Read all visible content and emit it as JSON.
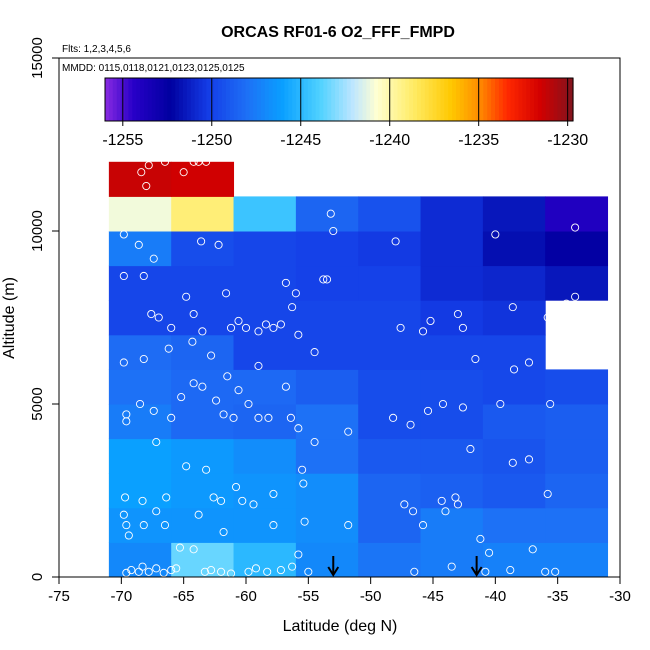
{
  "chart_data": {
    "type": "heatmap",
    "title": "ORCAS RF01-6 O2_FFF_FMPD",
    "annotations": {
      "flights": "Flts: 1,2,3,4,5,6",
      "dates": "MMDD: 0115,0118,0121,0123,0125,0125"
    },
    "xlabel": "Latitude (deg N)",
    "ylabel": "Altitude (m)",
    "xlim": [
      -75,
      -30
    ],
    "ylim": [
      0,
      15000
    ],
    "x_ticks": [
      -75,
      -70,
      -65,
      -60,
      -55,
      -50,
      -45,
      -40,
      -35,
      -30
    ],
    "x_tick_labels": [
      "-75",
      "-70",
      "-65",
      "-60",
      "-55",
      "-50",
      "-45",
      "-40",
      "-35",
      "-30"
    ],
    "y_ticks": [
      0,
      5000,
      10000,
      15000
    ],
    "y_tick_labels": [
      "0",
      "5000",
      "10000",
      "15000"
    ],
    "colorbar": {
      "min": -1256,
      "max": -1229.7,
      "ticks": [
        -1255,
        -1250,
        -1245,
        -1240,
        -1235,
        -1230
      ],
      "tick_labels": [
        "-1255",
        "-1250",
        "-1245",
        "-1240",
        "-1235",
        "-1230"
      ]
    },
    "lat_edges": [
      -71,
      -66,
      -61,
      -56,
      -51,
      -46,
      -41,
      -36,
      -31
    ],
    "alt_edges": [
      0,
      1000,
      2000,
      3000,
      4000,
      5000,
      6000,
      7000,
      8000,
      9000,
      10000,
      11000,
      12000
    ],
    "cells": [
      [
        -1247.0,
        -1243.5,
        -1245.0,
        -1247.0,
        -1247.8,
        -1247.5,
        -1247.3,
        -1247.3
      ],
      [
        -1246.5,
        -1246.5,
        -1246.5,
        -1246.8,
        -1248.5,
        -1247.5,
        -1248.0,
        -1248.0
      ],
      [
        -1246.0,
        -1246.3,
        -1246.5,
        -1246.8,
        -1248.5,
        -1248.7,
        -1249.0,
        -1248.5
      ],
      [
        -1246.0,
        -1246.3,
        -1246.8,
        -1248.0,
        -1249.0,
        -1249.0,
        -1249.2,
        -1248.8
      ],
      [
        -1247.5,
        -1248.3,
        -1248.5,
        -1248.0,
        -1249.5,
        -1249.5,
        -1249.0,
        -1248.8
      ],
      [
        -1248.0,
        -1248.3,
        -1248.3,
        -1248.8,
        -1249.5,
        -1249.5,
        -1249.7,
        -1249.5
      ],
      [
        -1248.2,
        -1248.5,
        -1249.8,
        -1249.8,
        -1249.8,
        -1249.8,
        -1249.8,
        null
      ],
      [
        -1249.8,
        -1249.8,
        -1249.8,
        -1249.8,
        -1249.8,
        -1250.3,
        -1250.5,
        null
      ],
      [
        -1249.8,
        -1249.8,
        -1249.8,
        -1250.0,
        -1250.0,
        -1250.8,
        -1251.0,
        -1251.5
      ],
      [
        -1247.5,
        -1249.5,
        -1249.8,
        -1250.0,
        -1250.3,
        -1250.8,
        -1251.8,
        -1252.5
      ],
      [
        -1241.0,
        -1239.0,
        -1244.5,
        -1248.5,
        -1249.3,
        -1250.8,
        -1251.5,
        -1254.0
      ],
      [
        -1231.3,
        -1231.5,
        null,
        null,
        null,
        null,
        null,
        null
      ]
    ],
    "arrows_lat": [
      -53,
      -41.5
    ],
    "points": [
      [
        -69.6,
        120
      ],
      [
        -69.2,
        200
      ],
      [
        -68.6,
        150
      ],
      [
        -68.3,
        300
      ],
      [
        -67.8,
        150
      ],
      [
        -67.2,
        250
      ],
      [
        -66.6,
        120
      ],
      [
        -66.0,
        200
      ],
      [
        -65.6,
        250
      ],
      [
        -65.3,
        850
      ],
      [
        -64.2,
        800
      ],
      [
        -63.3,
        150
      ],
      [
        -62.8,
        200
      ],
      [
        -62.0,
        150
      ],
      [
        -61.2,
        100
      ],
      [
        -59.8,
        150
      ],
      [
        -59.2,
        250
      ],
      [
        -58.3,
        150
      ],
      [
        -57.2,
        200
      ],
      [
        -56.3,
        300
      ],
      [
        -55.8,
        650
      ],
      [
        -55.0,
        150
      ],
      [
        -46.5,
        150
      ],
      [
        -43.5,
        300
      ],
      [
        -40.8,
        150
      ],
      [
        -38.8,
        200
      ],
      [
        -36.0,
        150
      ],
      [
        -35.2,
        150
      ],
      [
        -69.8,
        1800
      ],
      [
        -69.6,
        1500
      ],
      [
        -69.4,
        1200
      ],
      [
        -68.2,
        1500
      ],
      [
        -67.2,
        1900
      ],
      [
        -66.5,
        1500
      ],
      [
        -63.8,
        1800
      ],
      [
        -61.8,
        1300
      ],
      [
        -57.8,
        1500
      ],
      [
        -55.3,
        1600
      ],
      [
        -51.8,
        1500
      ],
      [
        -47.3,
        2100
      ],
      [
        -46.6,
        1900
      ],
      [
        -45.8,
        1500
      ],
      [
        -44.0,
        1900
      ],
      [
        -43.0,
        2100
      ],
      [
        -41.2,
        1100
      ],
      [
        -40.5,
        700
      ],
      [
        -37.0,
        800
      ],
      [
        -69.7,
        2300
      ],
      [
        -68.3,
        2200
      ],
      [
        -66.4,
        2300
      ],
      [
        -64.8,
        3200
      ],
      [
        -63.2,
        3100
      ],
      [
        -62.6,
        2300
      ],
      [
        -62.0,
        2200
      ],
      [
        -60.8,
        2600
      ],
      [
        -60.3,
        2200
      ],
      [
        -59.4,
        2100
      ],
      [
        -57.8,
        2400
      ],
      [
        -55.5,
        3100
      ],
      [
        -55.4,
        2700
      ],
      [
        -44.3,
        2200
      ],
      [
        -43.2,
        2300
      ],
      [
        -42.0,
        3700
      ],
      [
        -38.6,
        3300
      ],
      [
        -37.3,
        3400
      ],
      [
        -35.8,
        2400
      ],
      [
        -54.5,
        3900
      ],
      [
        -69.6,
        4500
      ],
      [
        -69.6,
        4700
      ],
      [
        -68.5,
        5000
      ],
      [
        -67.4,
        4800
      ],
      [
        -67.2,
        3900
      ],
      [
        -66.0,
        4600
      ],
      [
        -65.2,
        5200
      ],
      [
        -64.2,
        5600
      ],
      [
        -63.5,
        5500
      ],
      [
        -62.4,
        5100
      ],
      [
        -61.8,
        4700
      ],
      [
        -61.0,
        4600
      ],
      [
        -59.8,
        5000
      ],
      [
        -59.0,
        4600
      ],
      [
        -58.2,
        4600
      ],
      [
        -56.4,
        4600
      ],
      [
        -55.8,
        4300
      ],
      [
        -51.8,
        4200
      ],
      [
        -48.2,
        4600
      ],
      [
        -46.8,
        4400
      ],
      [
        -45.4,
        4800
      ],
      [
        -44.2,
        5000
      ],
      [
        -42.6,
        4900
      ],
      [
        -39.6,
        5000
      ],
      [
        -35.6,
        5000
      ],
      [
        -69.8,
        6200
      ],
      [
        -68.2,
        6300
      ],
      [
        -66.2,
        6600
      ],
      [
        -64.3,
        6800
      ],
      [
        -62.8,
        6400
      ],
      [
        -61.5,
        5800
      ],
      [
        -60.6,
        5400
      ],
      [
        -59.0,
        6100
      ],
      [
        -56.8,
        5500
      ],
      [
        -54.5,
        6500
      ],
      [
        -41.6,
        6300
      ],
      [
        -38.5,
        6000
      ],
      [
        -37.3,
        6200
      ],
      [
        -69.8,
        8700
      ],
      [
        -68.2,
        8700
      ],
      [
        -67.6,
        7600
      ],
      [
        -67.0,
        7500
      ],
      [
        -66.0,
        7200
      ],
      [
        -64.8,
        8100
      ],
      [
        -64.2,
        7600
      ],
      [
        -63.5,
        7100
      ],
      [
        -61.6,
        8200
      ],
      [
        -61.2,
        7200
      ],
      [
        -60.6,
        7400
      ],
      [
        -60.0,
        7200
      ],
      [
        -59.0,
        7100
      ],
      [
        -58.4,
        7300
      ],
      [
        -57.8,
        7200
      ],
      [
        -57.2,
        7300
      ],
      [
        -56.8,
        8500
      ],
      [
        -56.3,
        7800
      ],
      [
        -56.0,
        8200
      ],
      [
        -55.8,
        7000
      ],
      [
        -53.8,
        8600
      ],
      [
        -53.5,
        8600
      ],
      [
        -47.6,
        7200
      ],
      [
        -45.8,
        7100
      ],
      [
        -45.2,
        7400
      ],
      [
        -43.0,
        7600
      ],
      [
        -42.6,
        7200
      ],
      [
        -38.6,
        7800
      ],
      [
        -35.8,
        7500
      ],
      [
        -35.0,
        7800
      ],
      [
        -34.3,
        7900
      ],
      [
        -33.6,
        8100
      ],
      [
        -69.8,
        9900
      ],
      [
        -68.6,
        9600
      ],
      [
        -67.4,
        9200
      ],
      [
        -63.6,
        9700
      ],
      [
        -62.2,
        9600
      ],
      [
        -53.2,
        10500
      ],
      [
        -53.0,
        10000
      ],
      [
        -48.0,
        9700
      ],
      [
        -40.0,
        9900
      ],
      [
        -33.6,
        10100
      ],
      [
        -68.4,
        11700
      ],
      [
        -68.0,
        11300
      ],
      [
        -67.8,
        11900
      ],
      [
        -66.5,
        12000
      ],
      [
        -65.0,
        11700
      ],
      [
        -64.2,
        12000
      ],
      [
        -63.8,
        12000
      ],
      [
        -63.2,
        12000
      ]
    ]
  }
}
